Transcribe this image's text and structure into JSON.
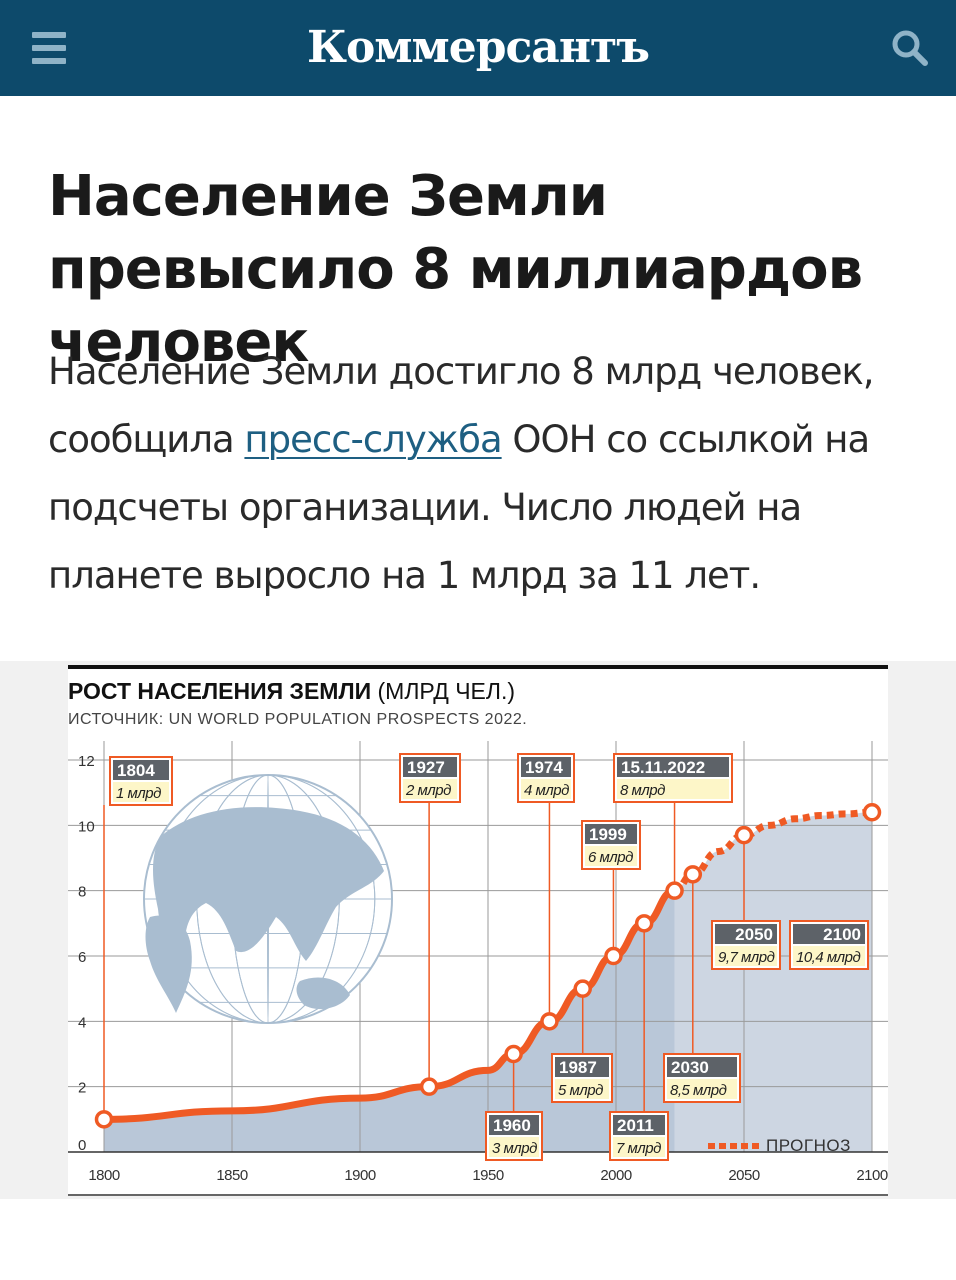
{
  "header": {
    "logo_text": "Коммерсантъ",
    "menu_icon": "hamburger-menu-icon",
    "search_icon": "search-icon",
    "brand_color": "#0d4a6b"
  },
  "article": {
    "title": "Население Земли превысило 8 миллиардов человек",
    "lead_before": "Население Земли достигло 8 млрд человек, сообщила ",
    "lead_link": "пресс-служба",
    "lead_after": " ООН со ссылкой на подсчеты организации. Число людей на планете выросло на 1 млрд за 11 лет."
  },
  "chart_data": {
    "type": "line",
    "title": "РОСТ НАСЕЛЕНИЯ ЗЕМЛИ",
    "title_unit": "(МЛРД ЧЕЛ.)",
    "source": "ИСТОЧНИК: UN WORLD POPULATION PROSPECTS 2022.",
    "xlabel": "",
    "ylabel": "",
    "xlim": [
      1800,
      2100
    ],
    "ylim": [
      0,
      12
    ],
    "x_ticks": [
      1800,
      1850,
      1900,
      1950,
      2000,
      2050,
      2100
    ],
    "y_ticks": [
      0,
      2,
      4,
      6,
      8,
      10,
      12
    ],
    "grid": true,
    "series": [
      {
        "kind": "actual",
        "color": "#ef5a24",
        "x": [
          1800,
          1850,
          1900,
          1927,
          1950,
          1960,
          1974,
          1987,
          1999,
          2011,
          2022.87
        ],
        "y": [
          1.0,
          1.26,
          1.65,
          2.0,
          2.5,
          3.0,
          4.0,
          5.0,
          6.0,
          7.0,
          8.0
        ]
      },
      {
        "name": "ПРОГНОЗ",
        "kind": "forecast",
        "color": "#ef5a24",
        "x": [
          2022.87,
          2030,
          2040,
          2050,
          2060,
          2070,
          2080,
          2090,
          2100
        ],
        "y": [
          8.0,
          8.5,
          9.2,
          9.7,
          10.0,
          10.2,
          10.3,
          10.35,
          10.4
        ]
      }
    ],
    "milestones": [
      {
        "x": 1800,
        "y": 1.0,
        "label": "1804",
        "value": "1 млрд"
      },
      {
        "x": 1927,
        "y": 2.0,
        "label": "1927",
        "value": "2 млрд"
      },
      {
        "x": 1960,
        "y": 3.0,
        "label": "1960",
        "value": "3 млрд"
      },
      {
        "x": 1974,
        "y": 4.0,
        "label": "1974",
        "value": "4 млрд"
      },
      {
        "x": 1987,
        "y": 5.0,
        "label": "1987",
        "value": "5 млрд"
      },
      {
        "x": 1999,
        "y": 6.0,
        "label": "1999",
        "value": "6 млрд"
      },
      {
        "x": 2011,
        "y": 7.0,
        "label": "2011",
        "value": "7 млрд"
      },
      {
        "x": 2022.87,
        "y": 8.0,
        "label": "15.11.2022",
        "value": "8 млрд"
      },
      {
        "x": 2030,
        "y": 8.5,
        "label": "2030",
        "value": "8,5 млрд"
      },
      {
        "x": 2050,
        "y": 9.7,
        "label": "2050",
        "value": "9,7 млрд"
      },
      {
        "x": 2100,
        "y": 10.4,
        "label": "2100",
        "value": "10,4 млрд"
      }
    ],
    "legend": {
      "label": "ПРОГНОЗ",
      "position": "bottom-right"
    },
    "decoration": "globe-icon",
    "colors": {
      "line": "#ef5a24",
      "area": "#b9c7d8",
      "label_box": "#5d6268",
      "value_box": "#fdf6c8"
    }
  }
}
